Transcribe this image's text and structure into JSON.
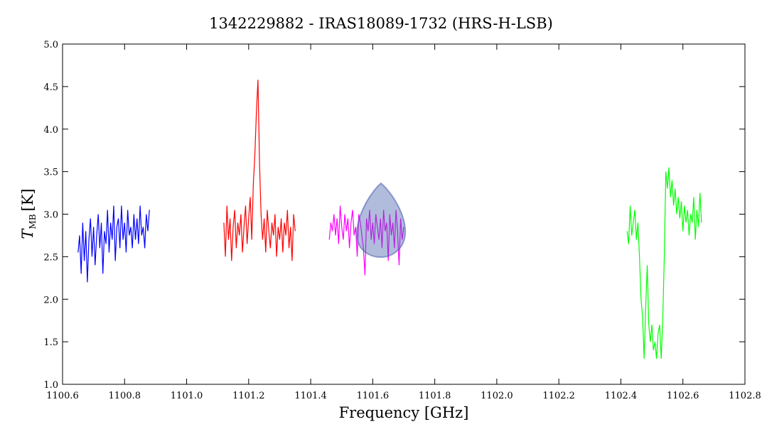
{
  "chart_data": {
    "type": "line",
    "title": "1342229882 - IRAS18089-1732 (HRS-H-LSB)",
    "xlabel": "Frequency [GHz]",
    "ylabel": {
      "main": "T",
      "sub": "MB",
      "unit": "[K]"
    },
    "xlim": [
      1100.6,
      1102.8
    ],
    "ylim": [
      1.0,
      5.0
    ],
    "xticks": [
      1100.6,
      1100.8,
      {
        "value": 1101,
        "label": "1101.0"
      },
      1101.2,
      1101.4,
      1101.6,
      1101.8,
      {
        "value": 1102,
        "label": "1102.0"
      },
      1102.2,
      1102.4,
      1102.6,
      1102.8
    ],
    "yticks": [
      {
        "value": 1,
        "label": "1.0"
      },
      1.5,
      {
        "value": 2,
        "label": "2.0"
      },
      2.5,
      {
        "value": 3,
        "label": "3.0"
      },
      3.5,
      {
        "value": 4,
        "label": "4.0"
      },
      4.5,
      {
        "value": 5,
        "label": "5.0"
      }
    ],
    "series": [
      {
        "color": "#0000ff",
        "x": [
          1100.65,
          1100.655,
          1100.66,
          1100.665,
          1100.67,
          1100.675,
          1100.68,
          1100.685,
          1100.69,
          1100.695,
          1100.7,
          1100.705,
          1100.71,
          1100.715,
          1100.72,
          1100.725,
          1100.73,
          1100.735,
          1100.74,
          1100.745,
          1100.75,
          1100.755,
          1100.76,
          1100.765,
          1100.77,
          1100.775,
          1100.78,
          1100.785,
          1100.79,
          1100.795,
          1100.8,
          1100.805,
          1100.81,
          1100.815,
          1100.82,
          1100.825,
          1100.83,
          1100.835,
          1100.84,
          1100.845,
          1100.85,
          1100.855,
          1100.86,
          1100.865,
          1100.87,
          1100.875,
          1100.88
        ],
        "values": [
          2.55,
          2.75,
          2.3,
          2.9,
          2.45,
          2.8,
          2.2,
          2.7,
          2.95,
          2.5,
          2.85,
          2.4,
          2.75,
          3.0,
          2.6,
          2.9,
          2.3,
          2.8,
          2.65,
          3.05,
          2.55,
          2.9,
          2.7,
          3.1,
          2.45,
          2.85,
          2.95,
          2.6,
          3.1,
          2.7,
          2.9,
          2.55,
          3.05,
          2.75,
          2.85,
          2.6,
          3.0,
          2.7,
          2.95,
          2.65,
          3.1,
          2.75,
          2.85,
          2.6,
          3.0,
          2.8,
          3.05
        ]
      },
      {
        "color": "#ff0000",
        "x": [
          1101.12,
          1101.125,
          1101.13,
          1101.135,
          1101.14,
          1101.145,
          1101.15,
          1101.155,
          1101.16,
          1101.165,
          1101.17,
          1101.175,
          1101.18,
          1101.185,
          1101.19,
          1101.195,
          1101.2,
          1101.205,
          1101.21,
          1101.215,
          1101.22,
          1101.225,
          1101.23,
          1101.235,
          1101.24,
          1101.245,
          1101.25,
          1101.255,
          1101.26,
          1101.265,
          1101.27,
          1101.275,
          1101.28,
          1101.285,
          1101.29,
          1101.295,
          1101.3,
          1101.305,
          1101.31,
          1101.315,
          1101.32,
          1101.325,
          1101.33,
          1101.335,
          1101.34,
          1101.345,
          1101.35
        ],
        "values": [
          2.9,
          2.5,
          3.1,
          2.7,
          2.95,
          2.45,
          2.85,
          3.05,
          2.6,
          2.9,
          2.75,
          3.0,
          2.55,
          2.85,
          3.1,
          2.65,
          2.95,
          3.2,
          2.7,
          3.35,
          3.7,
          4.2,
          4.58,
          3.6,
          3.0,
          2.7,
          2.95,
          2.55,
          3.05,
          2.8,
          2.6,
          2.9,
          2.75,
          3.0,
          2.5,
          2.85,
          2.7,
          2.95,
          2.55,
          2.9,
          2.75,
          3.05,
          2.6,
          2.85,
          2.45,
          3.0,
          2.8
        ]
      },
      {
        "color": "#ff00ff",
        "x": [
          1101.46,
          1101.465,
          1101.47,
          1101.475,
          1101.48,
          1101.485,
          1101.49,
          1101.495,
          1101.5,
          1101.505,
          1101.51,
          1101.515,
          1101.52,
          1101.525,
          1101.53,
          1101.535,
          1101.54,
          1101.545,
          1101.55,
          1101.555,
          1101.56,
          1101.565,
          1101.57,
          1101.575,
          1101.58,
          1101.585,
          1101.59,
          1101.595,
          1101.6,
          1101.605,
          1101.61,
          1101.615,
          1101.62,
          1101.625,
          1101.63,
          1101.635,
          1101.64,
          1101.645,
          1101.65,
          1101.655,
          1101.66,
          1101.665,
          1101.67,
          1101.675,
          1101.68,
          1101.685,
          1101.69,
          1101.695,
          1101.7
        ],
        "values": [
          2.7,
          2.9,
          2.8,
          3.0,
          2.75,
          2.95,
          2.65,
          3.1,
          2.85,
          2.7,
          3.0,
          2.8,
          2.95,
          2.6,
          2.9,
          3.05,
          2.75,
          2.85,
          2.5,
          3.0,
          2.9,
          2.75,
          2.6,
          2.28,
          2.95,
          2.8,
          3.05,
          2.7,
          2.9,
          2.65,
          3.0,
          2.85,
          2.7,
          2.95,
          2.6,
          3.05,
          2.8,
          2.9,
          2.45,
          3.0,
          2.75,
          2.9,
          2.6,
          3.05,
          2.8,
          2.4,
          2.95,
          2.7,
          2.85
        ]
      },
      {
        "color": "#00ff00",
        "x": [
          1102.42,
          1102.425,
          1102.43,
          1102.435,
          1102.44,
          1102.445,
          1102.45,
          1102.455,
          1102.46,
          1102.465,
          1102.47,
          1102.475,
          1102.48,
          1102.485,
          1102.49,
          1102.495,
          1102.5,
          1102.505,
          1102.51,
          1102.515,
          1102.52,
          1102.525,
          1102.53,
          1102.535,
          1102.54,
          1102.545,
          1102.55,
          1102.555,
          1102.56,
          1102.565,
          1102.57,
          1102.575,
          1102.58,
          1102.585,
          1102.59,
          1102.595,
          1102.6,
          1102.605,
          1102.61,
          1102.615,
          1102.62,
          1102.625,
          1102.63,
          1102.635,
          1102.64,
          1102.645,
          1102.65,
          1102.655,
          1102.66
        ],
        "values": [
          2.8,
          2.65,
          3.1,
          2.75,
          2.9,
          3.05,
          2.7,
          2.9,
          2.5,
          2.0,
          1.8,
          1.3,
          1.9,
          2.4,
          1.7,
          1.5,
          1.7,
          1.4,
          1.5,
          1.3,
          1.6,
          1.7,
          1.3,
          1.75,
          2.5,
          3.5,
          3.3,
          3.55,
          3.2,
          3.4,
          3.1,
          3.3,
          3.0,
          3.2,
          2.95,
          3.15,
          2.8,
          3.1,
          2.9,
          3.05,
          2.75,
          3.0,
          2.9,
          3.2,
          2.7,
          3.05,
          2.85,
          3.25,
          2.9
        ]
      }
    ]
  }
}
